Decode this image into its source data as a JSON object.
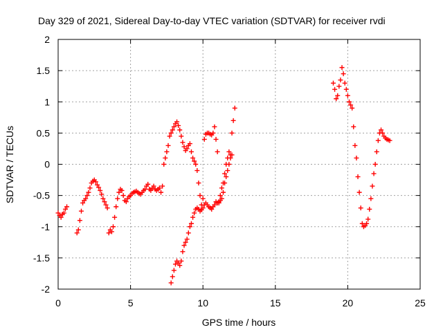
{
  "chart_data": {
    "type": "scatter",
    "title": "Day 329 of 2021, Sidereal Day-to-day VTEC variation (SDTVAR) for receiver rvdi",
    "xlabel": "GPS time / hours",
    "ylabel": "SDTVAR / TECUs",
    "xlim": [
      0,
      25
    ],
    "ylim": [
      -2,
      2
    ],
    "x_ticks": [
      "0",
      "5",
      "10",
      "15",
      "20",
      "25"
    ],
    "y_ticks": [
      "2",
      "1.5",
      "1",
      "0.5",
      "0",
      "-0.5",
      "-1",
      "-1.5",
      "-2"
    ],
    "x_tick_values": [
      0,
      5,
      10,
      15,
      20,
      25
    ],
    "y_tick_values": [
      2,
      1.5,
      1,
      0.5,
      0,
      -0.5,
      -1,
      -1.5,
      -2
    ],
    "grid": true,
    "marker": "plus",
    "color": "#ff0000",
    "series": [
      {
        "x": [
          0.0,
          0.1,
          0.2,
          0.3,
          0.4,
          0.5,
          0.6,
          1.3,
          1.4,
          1.5,
          1.6,
          1.7,
          1.8,
          1.9,
          2.0,
          2.1,
          2.2,
          2.3,
          2.4,
          2.5,
          2.6,
          2.7,
          2.8,
          2.9,
          3.0,
          3.1,
          3.2,
          3.3,
          3.4,
          3.5,
          3.6,
          3.7,
          3.8,
          3.9,
          4.0,
          4.1,
          4.2,
          4.3,
          4.4,
          4.5,
          4.6,
          4.7,
          4.8,
          4.9,
          5.0,
          5.1,
          5.2,
          5.3,
          5.4,
          5.5,
          5.6,
          5.7,
          5.8,
          5.9,
          6.0,
          6.1,
          6.2,
          6.3,
          6.4,
          6.5,
          6.6,
          6.7,
          6.8,
          6.9,
          7.0,
          7.1,
          7.2,
          7.3,
          7.4,
          7.5,
          7.6,
          7.7,
          7.8,
          7.9,
          8.0,
          8.1,
          8.2,
          8.3,
          8.4,
          8.5,
          8.6,
          8.7,
          8.8,
          8.9,
          9.0,
          9.1,
          9.2,
          9.3,
          9.4,
          9.5,
          9.6,
          9.7,
          9.8,
          9.9,
          10.0,
          10.1,
          10.2,
          10.3,
          10.4,
          10.5,
          10.6,
          10.7,
          10.8,
          10.9,
          11.0,
          11.1,
          11.2,
          11.3,
          11.4,
          11.5,
          11.6,
          11.7,
          11.8,
          11.9,
          12.0,
          12.1,
          12.2
        ],
        "y": [
          -0.78,
          -0.82,
          -0.85,
          -0.8,
          -0.78,
          -0.72,
          -0.68,
          -1.1,
          -1.05,
          -0.9,
          -0.75,
          -0.62,
          -0.58,
          -0.55,
          -0.5,
          -0.45,
          -0.38,
          -0.3,
          -0.27,
          -0.25,
          -0.28,
          -0.33,
          -0.37,
          -0.42,
          -0.48,
          -0.55,
          -0.6,
          -0.65,
          -0.7,
          -1.1,
          -1.05,
          -1.08,
          -1.0,
          -0.85,
          -0.68,
          -0.55,
          -0.45,
          -0.4,
          -0.42,
          -0.5,
          -0.58,
          -0.6,
          -0.55,
          -0.52,
          -0.5,
          -0.47,
          -0.45,
          -0.44,
          -0.43,
          -0.45,
          -0.47,
          -0.48,
          -0.45,
          -0.42,
          -0.4,
          -0.35,
          -0.32,
          -0.4,
          -0.42,
          -0.38,
          -0.35,
          -0.4,
          -0.42,
          -0.4,
          -0.38,
          -0.45,
          -0.35,
          -0.0,
          0.1,
          0.2,
          0.3,
          0.45,
          0.5,
          0.55,
          0.6,
          0.65,
          0.68,
          0.62,
          0.55,
          0.45,
          0.35,
          0.28,
          0.22,
          0.25,
          0.3,
          0.33,
          0.2,
          0.1,
          0.05,
          0.0,
          -0.1,
          -0.3,
          -0.5,
          -0.65,
          -0.55,
          0.4,
          0.48,
          0.5,
          0.5,
          0.48,
          0.47,
          0.5,
          0.6,
          0.4,
          0.2,
          -0.62,
          -0.5,
          -0.38,
          -0.3,
          -0.15,
          0.0,
          0.1,
          0.2,
          0.15,
          0.5,
          0.7,
          0.9
        ]
      },
      {
        "x": [
          7.8,
          7.9,
          8.0,
          8.1,
          8.2,
          8.3,
          8.4,
          8.5,
          8.6,
          8.7,
          8.8,
          8.9,
          9.0,
          9.1,
          9.2,
          9.3,
          9.4,
          9.5,
          9.6,
          9.7,
          9.8,
          9.9,
          10.0,
          10.1,
          10.2,
          10.3,
          10.4,
          10.5,
          10.6,
          10.7,
          10.8,
          10.9,
          11.0,
          11.1,
          11.2,
          11.3,
          11.4,
          11.5,
          11.6,
          11.7,
          11.8,
          11.9,
          12.0
        ],
        "y": [
          -1.9,
          -1.8,
          -1.7,
          -1.6,
          -1.55,
          -1.58,
          -1.62,
          -1.55,
          -1.4,
          -1.3,
          -1.25,
          -1.2,
          -1.1,
          -1.0,
          -0.95,
          -0.85,
          -0.78,
          -0.72,
          -0.7,
          -0.72,
          -0.75,
          -0.73,
          -0.7,
          -0.65,
          -0.62,
          -0.65,
          -0.68,
          -0.7,
          -0.72,
          -0.68,
          -0.65,
          -0.6,
          -0.62,
          -0.6,
          -0.58,
          -0.55,
          -0.45,
          -0.3,
          -0.2,
          -0.1,
          0.0,
          0.1,
          0.15
        ]
      },
      {
        "x": [
          19.0,
          19.1,
          19.2,
          19.3,
          19.4,
          19.5,
          19.6,
          19.7,
          19.8,
          19.9,
          20.0,
          20.1,
          20.2,
          20.3,
          20.4,
          20.5,
          20.6,
          20.7,
          20.8,
          20.9,
          21.0,
          21.1,
          21.2,
          21.3,
          21.4,
          21.5,
          21.6,
          21.7,
          21.8,
          21.9,
          22.0,
          22.1,
          22.2,
          22.3,
          22.4,
          22.5,
          22.6,
          22.7,
          22.8,
          22.9
        ],
        "y": [
          1.3,
          1.2,
          1.05,
          1.1,
          1.25,
          1.35,
          1.55,
          1.45,
          1.3,
          1.2,
          1.1,
          1.0,
          0.95,
          0.9,
          0.6,
          0.3,
          0.1,
          -0.2,
          -0.45,
          -0.7,
          -0.95,
          -1.0,
          -0.98,
          -0.95,
          -0.88,
          -0.72,
          -0.55,
          -0.35,
          -0.15,
          0.0,
          0.2,
          0.38,
          0.5,
          0.55,
          0.5,
          0.45,
          0.42,
          0.4,
          0.39,
          0.38
        ]
      }
    ]
  }
}
